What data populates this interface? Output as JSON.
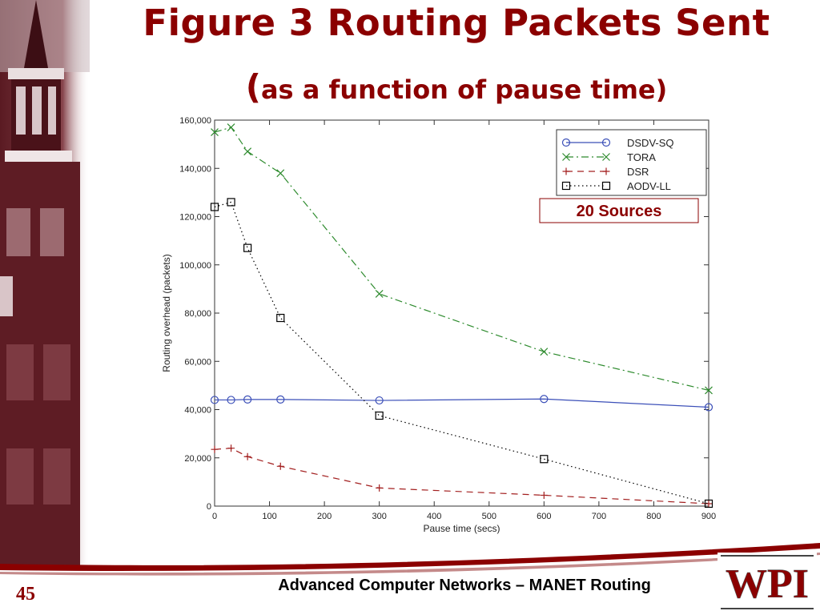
{
  "slide": {
    "title_line1": "Figure 3 Routing Packets Sent",
    "title_paren": "(",
    "title_line2": "as a function of pause time)",
    "footer": "Advanced Computer Networks – MANET Routing",
    "slide_number": "45",
    "logo_text": "WPI",
    "colors": {
      "title": "#8b0000",
      "accent": "#8b0000"
    }
  },
  "chart_data": {
    "type": "line",
    "title": "",
    "xlabel": "Pause time (secs)",
    "ylabel": "Routing overhead (packets)",
    "xlim": [
      0,
      900
    ],
    "ylim": [
      0,
      160000
    ],
    "xticks": [
      0,
      100,
      200,
      300,
      400,
      500,
      600,
      700,
      800,
      900
    ],
    "xtick_labels": [
      "0",
      "100",
      "200",
      "300",
      "400",
      "500",
      "600",
      "700",
      "800",
      "900"
    ],
    "yticks": [
      0,
      20000,
      40000,
      60000,
      80000,
      100000,
      120000,
      140000,
      160000
    ],
    "ytick_labels": [
      "0",
      "20,000",
      "40,000",
      "60,000",
      "80,000",
      "100,000",
      "120,000",
      "140,000",
      "160,000"
    ],
    "grid": false,
    "legend_position": "top-right",
    "annotation": "20 Sources",
    "x": [
      0,
      30,
      60,
      120,
      300,
      600,
      900
    ],
    "series": [
      {
        "name": "DSDV-SQ",
        "color": "#3b4fb8",
        "marker": "circle",
        "dash": "solid",
        "values": [
          44000,
          44000,
          44200,
          44200,
          43800,
          44400,
          41000
        ]
      },
      {
        "name": "TORA",
        "color": "#2e8b2e",
        "marker": "x",
        "dash": "dashdot",
        "values": [
          155000,
          157000,
          147000,
          138000,
          88000,
          64000,
          48000
        ]
      },
      {
        "name": "DSR",
        "color": "#a32020",
        "marker": "plus",
        "dash": "dashed",
        "values": [
          23500,
          24000,
          20500,
          16500,
          7500,
          4500,
          1000
        ]
      },
      {
        "name": "AODV-LL",
        "color": "#000000",
        "marker": "square",
        "dash": "dotted",
        "values": [
          124000,
          126000,
          107000,
          78000,
          37500,
          19500,
          1000
        ]
      }
    ]
  }
}
